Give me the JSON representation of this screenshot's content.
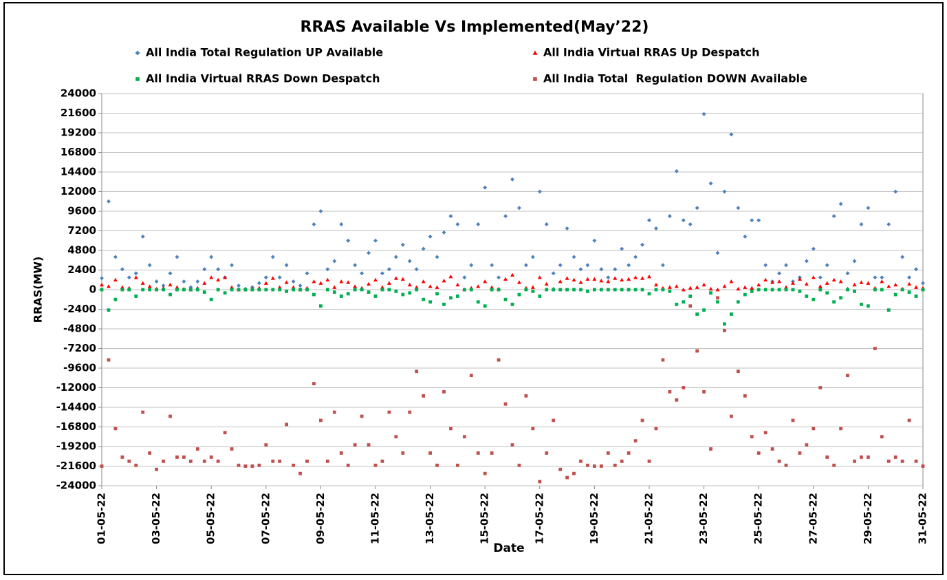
{
  "chart_data": {
    "type": "scatter",
    "title": "RRAS Available Vs Implemented(May’22)",
    "xlabel": "Date",
    "ylabel": "RRAS(MW)",
    "xlim": [
      1,
      31
    ],
    "xticks": [
      {
        "value": 1,
        "label": "01-05-22"
      },
      {
        "value": 3,
        "label": "03-05-22"
      },
      {
        "value": 5,
        "label": "05-05-22"
      },
      {
        "value": 7,
        "label": "07-05-22"
      },
      {
        "value": 9,
        "label": "09-05-22"
      },
      {
        "value": 11,
        "label": "11-05-22"
      },
      {
        "value": 13,
        "label": "13-05-22"
      },
      {
        "value": 15,
        "label": "15-05-22"
      },
      {
        "value": 17,
        "label": "17-05-22"
      },
      {
        "value": 19,
        "label": "19-05-22"
      },
      {
        "value": 21,
        "label": "21-05-22"
      },
      {
        "value": 23,
        "label": "23-05-22"
      },
      {
        "value": 25,
        "label": "25-05-22"
      },
      {
        "value": 27,
        "label": "27-05-22"
      },
      {
        "value": 29,
        "label": "29-05-22"
      },
      {
        "value": 31,
        "label": "31-05-22"
      }
    ],
    "ylim": [
      -24000,
      24000
    ],
    "yticks": [
      -24000,
      -21600,
      -19200,
      -16800,
      -14400,
      -12000,
      -9600,
      -7200,
      -4800,
      -2400,
      0,
      2400,
      4800,
      7200,
      9600,
      12000,
      14400,
      16800,
      19200,
      21600,
      24000
    ],
    "grid": true,
    "x": [
      1,
      1.25,
      1.5,
      1.75,
      2,
      2.25,
      2.5,
      2.75,
      3,
      3.25,
      3.5,
      3.75,
      4,
      4.25,
      4.5,
      4.75,
      5,
      5.25,
      5.5,
      5.75,
      6,
      6.25,
      6.5,
      6.75,
      7,
      7.25,
      7.5,
      7.75,
      8,
      8.25,
      8.5,
      8.75,
      9,
      9.25,
      9.5,
      9.75,
      10,
      10.25,
      10.5,
      10.75,
      11,
      11.25,
      11.5,
      11.75,
      12,
      12.25,
      12.5,
      12.75,
      13,
      13.25,
      13.5,
      13.75,
      14,
      14.25,
      14.5,
      14.75,
      15,
      15.25,
      15.5,
      15.75,
      16,
      16.25,
      16.5,
      16.75,
      17,
      17.25,
      17.5,
      17.75,
      18,
      18.25,
      18.5,
      18.75,
      19,
      19.25,
      19.5,
      19.75,
      20,
      20.25,
      20.5,
      20.75,
      21,
      21.25,
      21.5,
      21.75,
      22,
      22.25,
      22.5,
      22.75,
      23,
      23.25,
      23.5,
      23.75,
      24,
      24.25,
      24.5,
      24.75,
      25,
      25.25,
      25.5,
      25.75,
      26,
      26.25,
      26.5,
      26.75,
      27,
      27.25,
      27.5,
      27.75,
      28,
      28.25,
      28.5,
      28.75,
      29,
      29.25,
      29.5,
      29.75,
      30,
      30.25,
      30.5,
      30.75,
      31
    ],
    "series": [
      {
        "name": "All India Total Regulation UP Available",
        "color": "#4f81bd",
        "marker": "diamond",
        "values": [
          1400,
          10800,
          4000,
          2500,
          1500,
          2000,
          6500,
          3000,
          1000,
          500,
          2000,
          4000,
          1000,
          300,
          1000,
          2500,
          4000,
          2500,
          1500,
          3000,
          500,
          100,
          300,
          800,
          1500,
          4000,
          1500,
          3000,
          1000,
          500,
          2000,
          8000,
          9600,
          2500,
          3500,
          8000,
          6000,
          3000,
          2000,
          4500,
          6000,
          2000,
          2500,
          4000,
          5500,
          3500,
          2500,
          5000,
          6500,
          4000,
          7000,
          9000,
          8000,
          1500,
          3000,
          8000,
          12500,
          3000,
          1500,
          9000,
          13500,
          10000,
          3000,
          4000,
          12000,
          8000,
          2000,
          3000,
          7500,
          4000,
          2500,
          3000,
          6000,
          2500,
          1500,
          2500,
          5000,
          3000,
          4000,
          5500,
          8500,
          7500,
          3000,
          9000,
          14500,
          8500,
          8000,
          10000,
          21500,
          13000,
          4500,
          12000,
          19000,
          10000,
          6500,
          8500,
          8500,
          3000,
          1000,
          2000,
          3000,
          1000,
          1500,
          3500,
          5000,
          1500,
          3000,
          9000,
          10500,
          2000,
          3500,
          8000,
          10000,
          1500,
          1500,
          8000,
          12000,
          4000,
          1500,
          2500,
          800
        ]
      },
      {
        "name": "All India Virtual RRAS Up Despatch",
        "color": "#ff0000",
        "marker": "triangle",
        "values": [
          600,
          400,
          1200,
          300,
          200,
          1500,
          800,
          400,
          100,
          200,
          600,
          300,
          100,
          0,
          200,
          800,
          1500,
          1200,
          1500,
          300,
          0,
          0,
          100,
          200,
          800,
          1400,
          300,
          900,
          300,
          0,
          200,
          1000,
          800,
          1200,
          300,
          1000,
          900,
          400,
          200,
          700,
          1200,
          300,
          800,
          1400,
          1300,
          600,
          300,
          1000,
          400,
          300,
          1100,
          1600,
          600,
          0,
          200,
          400,
          1000,
          300,
          100,
          1300,
          1800,
          900,
          200,
          300,
          1500,
          700,
          100,
          1000,
          1400,
          1200,
          900,
          1300,
          1300,
          1100,
          1000,
          1400,
          1200,
          1300,
          1500,
          1400,
          1600,
          600,
          200,
          300,
          400,
          0,
          200,
          300,
          600,
          100,
          0,
          400,
          1000,
          100,
          300,
          200,
          600,
          1200,
          900,
          1000,
          300,
          800,
          1300,
          700,
          1500,
          400,
          800,
          1200,
          1000,
          100,
          600,
          900,
          800,
          200,
          1000,
          400,
          600,
          100,
          700,
          300,
          200
        ]
      },
      {
        "name": "All India Virtual RRAS Down Despatch",
        "color": "#00b050",
        "marker": "square",
        "values": [
          0,
          -2500,
          -1200,
          0,
          0,
          -800,
          0,
          0,
          0,
          0,
          -600,
          0,
          0,
          0,
          0,
          -300,
          -1200,
          0,
          -400,
          0,
          0,
          0,
          0,
          0,
          0,
          0,
          0,
          -200,
          0,
          0,
          0,
          -600,
          -2000,
          0,
          -300,
          -800,
          -500,
          0,
          0,
          -300,
          -800,
          0,
          0,
          -200,
          -600,
          -400,
          0,
          -1200,
          -1500,
          -500,
          -1800,
          -1000,
          -800,
          0,
          0,
          -1500,
          -2000,
          0,
          0,
          -1200,
          -1800,
          -600,
          0,
          -200,
          -800,
          0,
          0,
          0,
          0,
          0,
          0,
          -200,
          0,
          0,
          0,
          0,
          0,
          0,
          0,
          0,
          -500,
          0,
          0,
          -200,
          -1800,
          -1500,
          -800,
          -3000,
          -2500,
          -400,
          -1500,
          -4200,
          -3000,
          -1500,
          -600,
          -200,
          0,
          0,
          0,
          0,
          0,
          0,
          -200,
          -800,
          -1200,
          0,
          -400,
          -1500,
          -1000,
          0,
          -200,
          -1800,
          -2000,
          0,
          0,
          -2500,
          -600,
          0,
          -300,
          -800,
          0
        ]
      },
      {
        "name": "All India Total  Regulation DOWN Available",
        "color": "#c0504d",
        "marker": "square",
        "values": [
          -21600,
          -8600,
          -17000,
          -20500,
          -21000,
          -21500,
          -15000,
          -20000,
          -22000,
          -21000,
          -15500,
          -20500,
          -20500,
          -21000,
          -19500,
          -21000,
          -20500,
          -21000,
          -17500,
          -19500,
          -21500,
          -21600,
          -21600,
          -21500,
          -19000,
          -21000,
          -21000,
          -16500,
          -21500,
          -22500,
          -21000,
          -11500,
          -16000,
          -21000,
          -15000,
          -20000,
          -21500,
          -19000,
          -15500,
          -19000,
          -21500,
          -21000,
          -15000,
          -18000,
          -20000,
          -15000,
          -10000,
          -13000,
          -20000,
          -21500,
          -12500,
          -17000,
          -21500,
          -18000,
          -10500,
          -20000,
          -22500,
          -20000,
          -8600,
          -14000,
          -19000,
          -21500,
          -13000,
          -17000,
          -23500,
          -20000,
          -16000,
          -22000,
          -23000,
          -22500,
          -21000,
          -21500,
          -21600,
          -21600,
          -20000,
          -21500,
          -21000,
          -20000,
          -18500,
          -16000,
          -21000,
          -17000,
          -8600,
          -12500,
          -13500,
          -12000,
          -2000,
          -7500,
          -12500,
          -19500,
          -1000,
          -5000,
          -15500,
          -10000,
          -13000,
          -18000,
          -20000,
          -17500,
          -19500,
          -21000,
          -21500,
          -16000,
          -20000,
          -19000,
          -17000,
          -12000,
          -20500,
          -21500,
          -17000,
          -10500,
          -21000,
          -20500,
          -20500,
          -7200,
          -18000,
          -21000,
          -20500,
          -21000,
          -16000,
          -21000,
          -21600
        ]
      }
    ]
  }
}
